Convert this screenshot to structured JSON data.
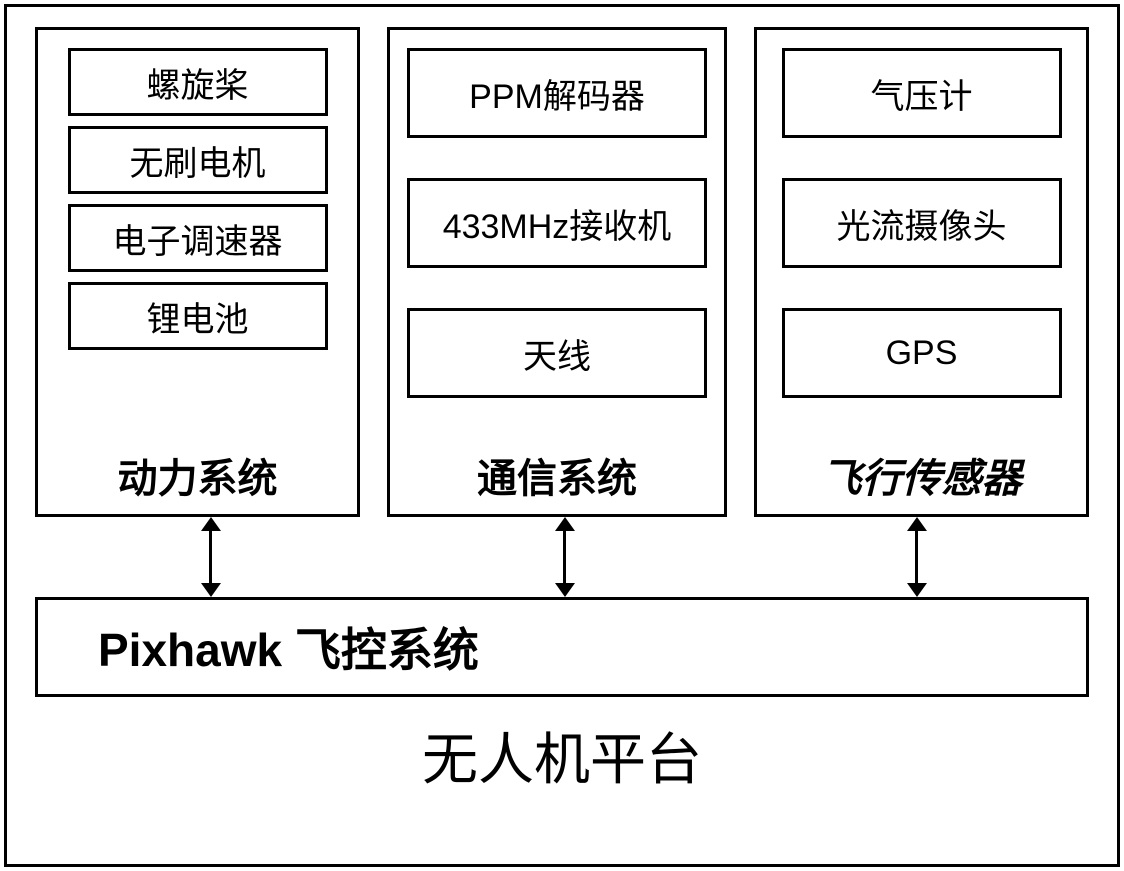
{
  "diagram": {
    "type": "block-diagram",
    "background_color": "#ffffff",
    "border_color": "#000000",
    "border_width": 3,
    "modules": {
      "power": {
        "label": "动力系统",
        "label_fontsize": 40,
        "label_weight": "bold",
        "items": [
          {
            "label": "螺旋桨"
          },
          {
            "label": "无刷电机"
          },
          {
            "label": "电子调速器"
          },
          {
            "label": "锂电池"
          }
        ],
        "item_fontsize": 34
      },
      "comm": {
        "label": "通信系统",
        "label_fontsize": 40,
        "label_weight": "bold",
        "items": [
          {
            "label": "PPM解码器"
          },
          {
            "label": "433MHz接收机"
          },
          {
            "label": "天线"
          }
        ],
        "item_fontsize": 34
      },
      "sensor": {
        "label": "飞行传感器",
        "label_fontsize": 40,
        "label_weight": "bold",
        "label_style": "italic",
        "items": [
          {
            "label": "气压计"
          },
          {
            "label": "光流摄像头"
          },
          {
            "label": "GPS"
          }
        ],
        "item_fontsize": 34
      }
    },
    "controller": {
      "label": "Pixhawk 飞控系统",
      "fontsize": 46,
      "weight": "bold"
    },
    "platform_title": {
      "label": "无人机平台",
      "fontsize": 56
    },
    "arrows": {
      "style": "bidirectional",
      "color": "#000000",
      "count": 3,
      "positions_x": [
        174,
        528,
        880
      ]
    }
  }
}
